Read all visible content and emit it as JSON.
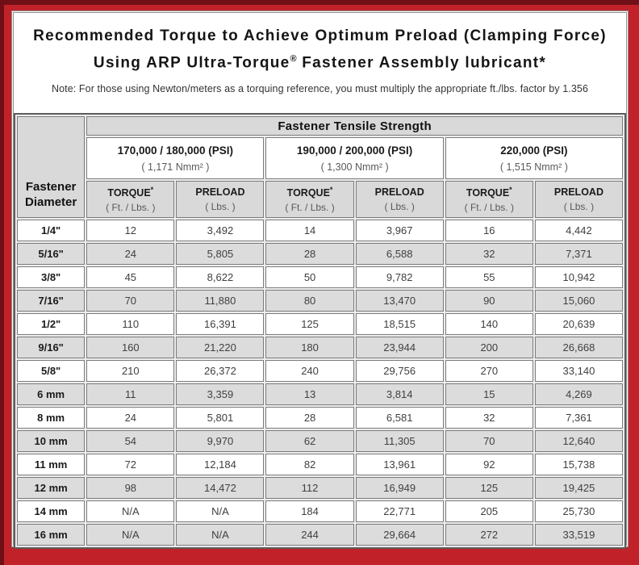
{
  "title": {
    "line1": "Recommended Torque to Achieve Optimum Preload (Clamping Force)",
    "line2_pre": "Using ARP Ultra-Torque",
    "line2_sup": "®",
    "line2_post": " Fastener Assembly lubricant*"
  },
  "note": "Note: For those using Newton/meters as a torquing reference, you must multiply the appropriate ft./lbs. factor by 1.356",
  "colors": {
    "frame_red": "#C1222A",
    "frame_dark_red": "#701016",
    "header_gray": "#D9D9D9",
    "row_alt_gray": "#DCDCDC"
  },
  "table": {
    "tensile_header": "Fastener Tensile Strength",
    "diameter_header": {
      "line1": "Fastener",
      "line2": "Diameter"
    },
    "psi_groups": [
      {
        "psi": "170,000 / 180,000 (PSI)",
        "nmm": "( 1,171 Nmm² )"
      },
      {
        "psi": "190,000 / 200,000 (PSI)",
        "nmm": "( 1,300 Nmm² )"
      },
      {
        "psi": "220,000 (PSI)",
        "nmm": "( 1,515 Nmm² )"
      }
    ],
    "column_headers": {
      "torque": "TORQUE",
      "torque_sup": "*",
      "torque_unit": "( Ft. / Lbs. )",
      "preload": "PRELOAD",
      "preload_unit": "( Lbs. )"
    },
    "rows": [
      {
        "diameter": "1/4\"",
        "values": [
          "12",
          "3,492",
          "14",
          "3,967",
          "16",
          "4,442"
        ]
      },
      {
        "diameter": "5/16\"",
        "values": [
          "24",
          "5,805",
          "28",
          "6,588",
          "32",
          "7,371"
        ]
      },
      {
        "diameter": "3/8\"",
        "values": [
          "45",
          "8,622",
          "50",
          "9,782",
          "55",
          "10,942"
        ]
      },
      {
        "diameter": "7/16\"",
        "values": [
          "70",
          "11,880",
          "80",
          "13,470",
          "90",
          "15,060"
        ]
      },
      {
        "diameter": "1/2\"",
        "values": [
          "110",
          "16,391",
          "125",
          "18,515",
          "140",
          "20,639"
        ]
      },
      {
        "diameter": "9/16\"",
        "values": [
          "160",
          "21,220",
          "180",
          "23,944",
          "200",
          "26,668"
        ]
      },
      {
        "diameter": "5/8\"",
        "values": [
          "210",
          "26,372",
          "240",
          "29,756",
          "270",
          "33,140"
        ]
      },
      {
        "diameter": "6 mm",
        "values": [
          "11",
          "3,359",
          "13",
          "3,814",
          "15",
          "4,269"
        ]
      },
      {
        "diameter": "8 mm",
        "values": [
          "24",
          "5,801",
          "28",
          "6,581",
          "32",
          "7,361"
        ]
      },
      {
        "diameter": "10 mm",
        "values": [
          "54",
          "9,970",
          "62",
          "11,305",
          "70",
          "12,640"
        ]
      },
      {
        "diameter": "11 mm",
        "values": [
          "72",
          "12,184",
          "82",
          "13,961",
          "92",
          "15,738"
        ]
      },
      {
        "diameter": "12 mm",
        "values": [
          "98",
          "14,472",
          "112",
          "16,949",
          "125",
          "19,425"
        ]
      },
      {
        "diameter": "14 mm",
        "values": [
          "N/A",
          "N/A",
          "184",
          "22,771",
          "205",
          "25,730"
        ]
      },
      {
        "diameter": "16 mm",
        "values": [
          "N/A",
          "N/A",
          "244",
          "29,664",
          "272",
          "33,519"
        ]
      }
    ]
  }
}
